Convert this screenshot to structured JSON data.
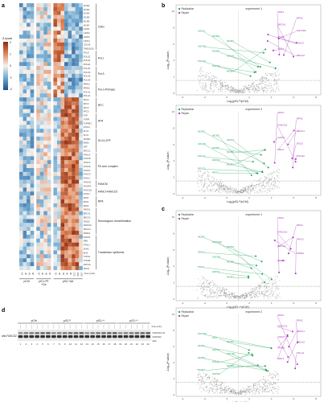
{
  "panels": {
    "a": "a",
    "b": "b",
    "c": "c",
    "d": "d"
  },
  "heatmap": {
    "zscore_label": "Z-score",
    "scale_ticks": [
      "2",
      "1",
      "0",
      "-1",
      "-2"
    ],
    "rows": [
      "MCM2",
      "MCM3",
      "MCM4",
      "MCM5",
      "MCM6",
      "MCM7",
      "GINS1",
      "GINS2",
      "GINS3",
      "GINS4",
      "CDC45",
      "TIMELESS",
      "POLE",
      "POLE2",
      "POLE3",
      "POLE4",
      "POLD1",
      "POLD2",
      "POLD3",
      "POLD4",
      "PRIM1",
      "PRIM2",
      "POLA1",
      "POLA2",
      "RFC2",
      "RFC3",
      "RFC4",
      "RFC5",
      "ATR",
      "ATRIP",
      "TOPBP1",
      "ETAA1",
      "SLX4",
      "SLX1",
      "MUS81",
      "EME1",
      "XPF",
      "ERCC1",
      "FANCA",
      "FANCB",
      "FANCC",
      "FANCE",
      "FANCF",
      "FANCG",
      "FANCL",
      "FANCM",
      "FAAP24",
      "FANCD2",
      "FANCI",
      "RPA1",
      "RPA2",
      "RPA3",
      "RAD51",
      "BRCA1",
      "BRCA2",
      "PALB2",
      "RAD51C",
      "XRCC3",
      "MRE11",
      "RAD50",
      "NBN",
      "RTEL1",
      "DNA2",
      "BLM",
      "TOP2A",
      "TOP2B",
      "SMC1A",
      "SMC3"
    ],
    "groups": [
      {
        "label": "CMG",
        "start": 0,
        "end": 11
      },
      {
        "label": "Pol ε",
        "start": 12,
        "end": 15
      },
      {
        "label": "Pol δ",
        "start": 16,
        "end": 19
      },
      {
        "label": "Pol α-Primase",
        "start": 20,
        "end": 23
      },
      {
        "label": "RFC",
        "start": 24,
        "end": 27
      },
      {
        "label": "ATR",
        "start": 28,
        "end": 31
      },
      {
        "label": "SLX4-XPF",
        "start": 32,
        "end": 37
      },
      {
        "label": "FA core complex",
        "start": 38,
        "end": 44
      },
      {
        "label": "FANCM",
        "start": 45,
        "end": 46
      },
      {
        "label": "FANCI-FANCD2",
        "start": 47,
        "end": 48
      },
      {
        "label": "RPA",
        "start": 49,
        "end": 51
      },
      {
        "label": "Homologous recombination",
        "start": 52,
        "end": 58
      },
      {
        "label": "Translesion synthesis",
        "start": 59,
        "end": 67
      }
    ],
    "time_label": "time (min)",
    "col_times": [
      "15",
      "30",
      "45",
      "60",
      "15",
      "30",
      "45",
      "60",
      "15",
      "30",
      "45",
      "60",
      "90",
      "120",
      "180",
      "240"
    ],
    "condition_labels": [
      "pCtrl",
      "pICL^Pt",
      "pICL^AA"
    ],
    "condition_sub": "+Cis"
  },
  "volcano_b": [
    {
      "title": "experiment 1",
      "xlabel": "Log₂(pICLᴾᵗ/pCtrl)",
      "ylabel": "-Log₁₀(P-value)"
    },
    {
      "title": "experiment 2",
      "xlabel": "Log₂(pICLᴾᵗ/pCtrl)",
      "ylabel": "-Log₁₀(P-value)"
    }
  ],
  "volcano_c": [
    {
      "title": "experiment 1",
      "xlabel": "Log₂(pICLᴬᴬ/pCtrl)",
      "ylabel": "-Log₁₀(P-value)"
    },
    {
      "title": "experiment 2",
      "xlabel": "Log₂(pICLᴬᴬ/pCtrl)",
      "ylabel": "-Log₁₀(P-value)"
    }
  ],
  "legend": {
    "replication": "Replication",
    "repair": "Repair"
  },
  "colors": {
    "replication": "#1f9d55",
    "repair": "#a234b4",
    "cloud": "#9a9a9a",
    "threshold": "#7a7a7a"
  },
  "volcano_labels": {
    "b1": [
      {
        "text": "RPA1",
        "c": "repair"
      },
      {
        "text": "RPA2",
        "c": "repair"
      },
      {
        "text": "BRCA1",
        "c": "repair"
      },
      {
        "text": "FANCD2",
        "c": "repair"
      },
      {
        "text": "POLE",
        "c": "repair"
      },
      {
        "text": "FANCI",
        "c": "repair"
      },
      {
        "text": "REV1",
        "c": "repair"
      },
      {
        "text": "BRCA2",
        "c": "repair"
      },
      {
        "text": "GINS1",
        "c": "replication"
      },
      {
        "text": "MCM2",
        "c": "replication"
      },
      {
        "text": "MCM3",
        "c": "replication"
      },
      {
        "text": "CDC45",
        "c": "replication"
      },
      {
        "text": "MCM5",
        "c": "replication"
      },
      {
        "text": "GINS4",
        "c": "replication"
      },
      {
        "text": "POLD2",
        "c": "replication"
      },
      {
        "text": "POLA1",
        "c": "replication"
      },
      {
        "text": "MCM4",
        "c": "replication"
      }
    ],
    "b2": [
      {
        "text": "RPA1",
        "c": "repair"
      },
      {
        "text": "RPA2",
        "c": "repair"
      },
      {
        "text": "FANCD2",
        "c": "repair"
      },
      {
        "text": "BRCA1",
        "c": "repair"
      },
      {
        "text": "FANCI",
        "c": "repair"
      },
      {
        "text": "POLE",
        "c": "repair"
      },
      {
        "text": "REV1",
        "c": "repair"
      },
      {
        "text": "POLD3",
        "c": "repair"
      },
      {
        "text": "MCM2",
        "c": "replication"
      },
      {
        "text": "MCM3",
        "c": "replication"
      },
      {
        "text": "GINS1",
        "c": "replication"
      },
      {
        "text": "CDC45",
        "c": "replication"
      },
      {
        "text": "MCM5",
        "c": "replication"
      },
      {
        "text": "MCM6",
        "c": "replication"
      },
      {
        "text": "POLA1",
        "c": "replication"
      },
      {
        "text": "GINS2",
        "c": "replication"
      },
      {
        "text": "MCM7",
        "c": "replication"
      },
      {
        "text": "POLD1",
        "c": "replication"
      },
      {
        "text": "RFC4",
        "c": "replication"
      }
    ],
    "c1": [
      {
        "text": "RPA1",
        "c": "repair"
      },
      {
        "text": "RPA2",
        "c": "repair"
      },
      {
        "text": "FANCD2",
        "c": "repair"
      },
      {
        "text": "FANCI",
        "c": "repair"
      },
      {
        "text": "BRCA1",
        "c": "repair"
      },
      {
        "text": "PRIM1",
        "c": "repair"
      },
      {
        "text": "POLA1",
        "c": "repair"
      },
      {
        "text": "MCM2",
        "c": "replication"
      },
      {
        "text": "FANCD2",
        "c": "replication"
      },
      {
        "text": "MCM3",
        "c": "replication"
      },
      {
        "text": "GINS1",
        "c": "replication"
      },
      {
        "text": "CDC45",
        "c": "replication"
      },
      {
        "text": "MCM5",
        "c": "replication"
      },
      {
        "text": "POLE",
        "c": "replication"
      },
      {
        "text": "GINS4",
        "c": "replication"
      },
      {
        "text": "MCM7",
        "c": "replication"
      }
    ],
    "c2": [
      {
        "text": "RPA1",
        "c": "repair"
      },
      {
        "text": "RPA2",
        "c": "repair"
      },
      {
        "text": "FANCD2",
        "c": "repair"
      },
      {
        "text": "BRCA1",
        "c": "repair"
      },
      {
        "text": "FANCI",
        "c": "repair"
      },
      {
        "text": "BRCA2",
        "c": "repair"
      },
      {
        "text": "PRIM1",
        "c": "repair"
      },
      {
        "text": "POLA1",
        "c": "repair"
      },
      {
        "text": "REV1",
        "c": "repair"
      },
      {
        "text": "FANCM",
        "c": "replication"
      },
      {
        "text": "ATR",
        "c": "replication"
      },
      {
        "text": "MCM2",
        "c": "replication"
      },
      {
        "text": "MCM3",
        "c": "replication"
      },
      {
        "text": "GINS1",
        "c": "replication"
      },
      {
        "text": "CDC45",
        "c": "replication"
      },
      {
        "text": "MCM5",
        "c": "replication"
      },
      {
        "text": "POLE",
        "c": "replication"
      },
      {
        "text": "MCM6",
        "c": "replication"
      },
      {
        "text": "MCM7",
        "c": "replication"
      },
      {
        "text": "GINS4",
        "c": "replication"
      }
    ]
  },
  "western": {
    "conditions": [
      "pCtrl",
      "pICLᴾᵗ",
      "pICLᴬᴬ",
      "pICLᴬᴬ"
    ],
    "marker_label": "time (min)",
    "kda_labels": [
      "FANCD2-Ub",
      "FANCD2",
      "kDa"
    ],
    "lane_numbers": [
      "1",
      "2",
      "3",
      "4",
      "5",
      "6",
      "7",
      "8",
      "9",
      "10",
      "11",
      "12",
      "13",
      "14",
      "15",
      "16",
      "17",
      "18",
      "19",
      "20",
      "21",
      "22",
      "23",
      "24"
    ],
    "antibody": "anti-FANCD2"
  }
}
